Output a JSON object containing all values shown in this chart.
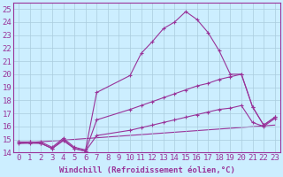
{
  "xlabel": "Windchill (Refroidissement éolien,°C)",
  "bg_color": "#cceeff",
  "line_color": "#993399",
  "grid_color": "#aaccdd",
  "xlim": [
    -0.5,
    23.5
  ],
  "ylim": [
    14,
    25.5
  ],
  "yticks": [
    14,
    15,
    16,
    17,
    18,
    19,
    20,
    21,
    22,
    23,
    24,
    25
  ],
  "xticks": [
    0,
    1,
    2,
    3,
    4,
    5,
    6,
    7,
    8,
    9,
    10,
    11,
    12,
    13,
    14,
    15,
    16,
    17,
    18,
    19,
    20,
    21,
    22,
    23
  ],
  "line1_x": [
    0,
    1,
    2,
    3,
    4,
    5,
    6,
    7,
    10,
    11,
    12,
    13,
    14,
    15,
    16,
    17,
    18,
    19,
    20,
    21,
    22,
    23
  ],
  "line1_y": [
    14.8,
    14.8,
    14.8,
    14.4,
    15.1,
    14.4,
    14.2,
    18.6,
    19.9,
    21.6,
    22.5,
    23.5,
    24.0,
    24.8,
    24.2,
    23.2,
    21.8,
    20.0,
    20.0,
    17.5,
    16.1,
    16.7
  ],
  "line2_x": [
    0,
    1,
    2,
    3,
    4,
    5,
    6,
    7,
    10,
    11,
    12,
    13,
    14,
    15,
    16,
    17,
    18,
    19,
    20,
    21,
    22,
    23
  ],
  "line2_y": [
    14.8,
    14.8,
    14.7,
    14.3,
    15.0,
    14.3,
    14.1,
    16.5,
    17.3,
    17.6,
    17.9,
    18.2,
    18.5,
    18.8,
    19.1,
    19.3,
    19.6,
    19.8,
    20.0,
    17.5,
    16.1,
    16.7
  ],
  "line3_x": [
    0,
    1,
    2,
    3,
    4,
    5,
    6,
    7,
    10,
    11,
    12,
    13,
    14,
    15,
    16,
    17,
    18,
    19,
    20,
    21,
    22,
    23
  ],
  "line3_y": [
    14.7,
    14.7,
    14.7,
    14.3,
    14.9,
    14.3,
    14.1,
    15.3,
    15.7,
    15.9,
    16.1,
    16.3,
    16.5,
    16.7,
    16.9,
    17.1,
    17.3,
    17.4,
    17.6,
    16.3,
    16.0,
    16.6
  ],
  "line4_x": [
    0,
    23
  ],
  "line4_y": [
    14.7,
    16.1
  ],
  "font_size": 6.5,
  "marker_size": 2.5
}
